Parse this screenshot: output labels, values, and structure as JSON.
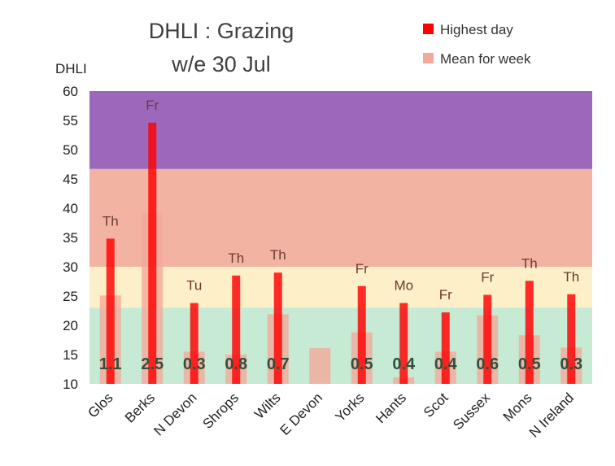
{
  "chart_data": {
    "type": "bar",
    "title": "DHLI : Grazing",
    "subtitle": "w/e 30 Jul",
    "ylabel": "DHLI",
    "ylim": [
      10,
      60
    ],
    "yticks": [
      10,
      15,
      20,
      25,
      30,
      35,
      40,
      45,
      50,
      55,
      60
    ],
    "bands": [
      {
        "from": 10,
        "to": 23,
        "color": "#c6ead3"
      },
      {
        "from": 23,
        "to": 30,
        "color": "#fdefc8"
      },
      {
        "from": 30,
        "to": 46.7,
        "color": "#f2b3a3"
      },
      {
        "from": 46.7,
        "to": 60,
        "color": "#9d68bb"
      }
    ],
    "categories": [
      "Glos",
      "Berks",
      "N Devon",
      "Shrops",
      "Wilts",
      "E Devon",
      "Yorks",
      "Hants",
      "Scot",
      "Sussex",
      "Mons",
      "N Ireland"
    ],
    "series": [
      {
        "name": "Highest day",
        "color": "#ff0000",
        "values": [
          34.8,
          54.6,
          23.8,
          28.5,
          29.0,
          null,
          26.7,
          23.8,
          22.2,
          25.2,
          27.6,
          25.3
        ]
      },
      {
        "name": "Mean for week",
        "color": "#f4a89a",
        "values": [
          25.1,
          39.2,
          15.5,
          15.0,
          21.9,
          16.1,
          18.8,
          11.1,
          15.5,
          21.7,
          18.3,
          16.2
        ]
      }
    ],
    "day_labels": [
      "Th",
      "Fr",
      "Tu",
      "Th",
      "Th",
      "",
      "Fr",
      "Mo",
      "Fr",
      "Fr",
      "Th",
      "Th"
    ],
    "index_labels": [
      "1.1",
      "2.5",
      "0.3",
      "0.8",
      "0.7",
      "",
      "0.5",
      "0.4",
      "0.4",
      "0.6",
      "0.5",
      "0.3"
    ],
    "legend_placement": "top-right",
    "grid": false
  }
}
